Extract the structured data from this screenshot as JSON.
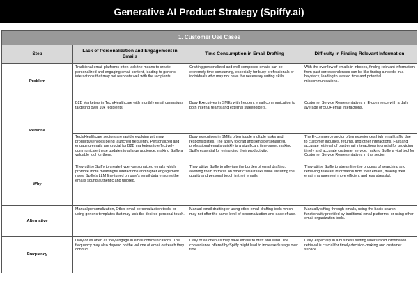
{
  "title": "Generative AI Product Strategy (Spiffy.ai)",
  "section_title": "1. Customer Use Cases",
  "columns": [
    "Step",
    "Lack of Personalization and Engagement in Emails",
    "Time Consumption in Email Drafting",
    "Difficulty in Finding Relevant Information"
  ],
  "rows": {
    "problem": {
      "label": "Problem",
      "cells": [
        "Traditional email platforms often lack the means to create personalized and engaging email content, leading to generic interactions that may not resonate well with the recipients.",
        "Crafting personalized and well-composed emails can be extremely time-consuming, especially for busy professionals or individuals who may not have the necessary writing skills.",
        "With the overflow of emails in inboxes, finding relevant information from past correspondences can be like finding a needle in a haystack, leading to wasted time and potential miscommunications."
      ]
    },
    "persona": {
      "label": "Persona",
      "cells_a": [
        "B2B Marketers in Tech/Healthcare with monthly email campaigns targeting over 10k recipients.",
        "Busy Executives in SMEs with frequent email communication to both internal teams and external stakeholders.",
        "Customer Service Representatives in E-commerce with a daily average of 500+ email interactions."
      ],
      "cells_b": [
        "Tech/Healthcare sectors are rapidly evolving with new products/services being launched frequently. Personalized and engaging emails are crucial for B2B marketers to effectively communicate these updates to a large audience, making Spiffy a valuable tool for them.",
        "Busy executives in SMEs often juggle multiple tasks and responsibilities. The ability to draft and send personalized, professional emails quickly is a significant time-saver, making Spiffy essential for enhancing their productivity.",
        "The E-commerce sector often experiences high email traffic due to customer inquiries, returns, and other interactions. Fast and accurate retrieval of past email interactions is crucial for providing timely and accurate customer service, making Spiffy a vital tool for Customer Service Representatives in this sector."
      ]
    },
    "why": {
      "label": "Why",
      "cells": [
        "They utilize Spiffy to create hyper-personalized emails which promote more meaningful interactions and higher engagement rates. Spiffy's LLM fine-tuned on user's email data ensures the emails sound authentic and tailored.",
        "They utilize Spiffy to alleviate the burden of email drafting, allowing them to focus on other crucial tasks while ensuring the quality and personal touch in their emails.",
        "They utilize Spiffy to streamline the process of searching and retrieving relevant information from their emails, making their email management more efficient and less stressful."
      ]
    },
    "alternative": {
      "label": "Alternative",
      "cells": [
        "Manual personalization, Other email personalization tools, or using generic templates that may lack the desired personal touch.",
        "Manual email drafting or using other email drafting tools which may not offer the same level of personalization and ease of use.",
        "Manually sifting through emails, using the basic search functionality provided by traditional email platforms, or using other email organization tools."
      ]
    },
    "frequency": {
      "label": "Frequency",
      "cells": [
        "Daily or as often as they engage in email communications. The frequency may also depend on the volume of email outreach they conduct.",
        "Daily or as often as they have emails to draft and send. The convenience offered by Spiffy might lead to increased usage over time.",
        "Daily, especially in a business setting where rapid information retrieval is crucial for timely decision-making and customer service."
      ]
    }
  }
}
